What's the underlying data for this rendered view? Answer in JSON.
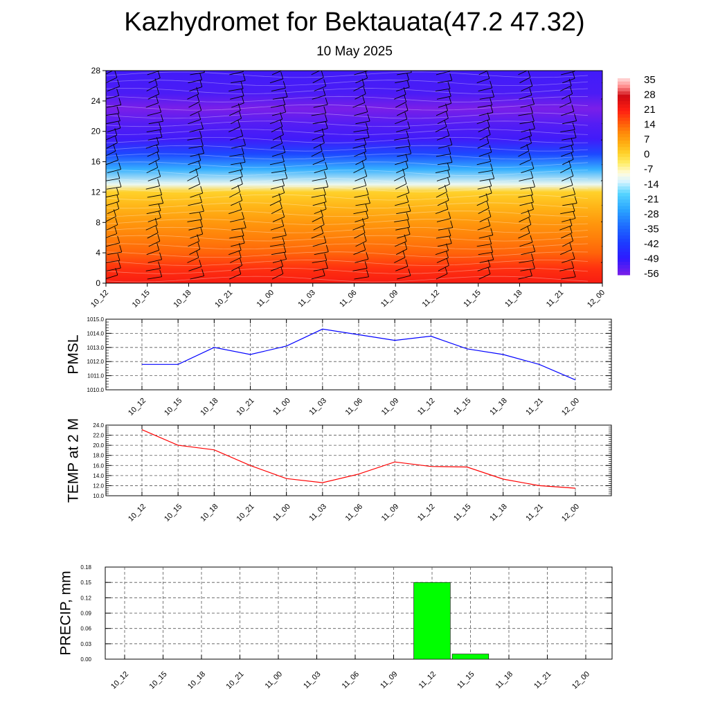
{
  "title": "Kazhydromet for Bektauata(47.2 47.32)",
  "subtitle": "10 May 2025",
  "time_labels": [
    "10_12",
    "10_15",
    "10_18",
    "10_21",
    "11_00",
    "11_03",
    "11_06",
    "11_09",
    "11_12",
    "11_15",
    "11_18",
    "11_21",
    "12_00"
  ],
  "chart_data": [
    {
      "type": "heatmap",
      "id": "cross-section",
      "x": [
        "10_12",
        "10_15",
        "10_18",
        "10_21",
        "11_00",
        "11_03",
        "11_06",
        "11_09",
        "11_12",
        "11_15",
        "11_18",
        "11_21",
        "12_00"
      ],
      "y_ticks": [
        "0",
        "4",
        "8",
        "12",
        "16",
        "20",
        "24",
        "28"
      ],
      "ylim": [
        0,
        28
      ],
      "colorbar_labels": [
        "35",
        "28",
        "21",
        "14",
        "7",
        "0",
        "-7",
        "-14",
        "-21",
        "-28",
        "-35",
        "-42",
        "-49",
        "-56"
      ],
      "zlim": [
        -60,
        37
      ],
      "level_profile": [
        {
          "level": 0,
          "value": 22
        },
        {
          "level": 2,
          "value": 19
        },
        {
          "level": 4,
          "value": 14
        },
        {
          "level": 6,
          "value": 11
        },
        {
          "level": 8,
          "value": 8
        },
        {
          "level": 10,
          "value": 4
        },
        {
          "level": 12,
          "value": 0
        },
        {
          "level": 13,
          "value": -12
        },
        {
          "level": 15,
          "value": -26
        },
        {
          "level": 17,
          "value": -42
        },
        {
          "level": 19,
          "value": -54
        },
        {
          "level": 21,
          "value": -56
        },
        {
          "level": 23,
          "value": -60
        },
        {
          "level": 25,
          "value": -55
        },
        {
          "level": 28,
          "value": -54
        }
      ],
      "wind_barbs": true
    },
    {
      "type": "line",
      "id": "pmsl",
      "ylabel": "PMSL",
      "x": [
        "10_12",
        "10_15",
        "10_18",
        "10_21",
        "11_00",
        "11_03",
        "11_06",
        "11_09",
        "11_12",
        "11_15",
        "11_18",
        "11_21",
        "12_00"
      ],
      "series": [
        {
          "color": "#0000ff",
          "values": [
            1011.8,
            1011.8,
            1013.0,
            1012.5,
            1013.1,
            1014.3,
            1013.9,
            1013.5,
            1013.8,
            1012.9,
            1012.5,
            1011.8,
            1010.7
          ]
        }
      ],
      "ylim": [
        1010.0,
        1015.0
      ],
      "y_ticks": [
        "1010.0",
        "1011.0",
        "1012.0",
        "1013.0",
        "1014.0",
        "1015.0"
      ],
      "grid": true
    },
    {
      "type": "line",
      "id": "temp",
      "ylabel": "TEMP at 2 M",
      "x": [
        "10_12",
        "10_15",
        "10_18",
        "10_21",
        "11_00",
        "11_03",
        "11_06",
        "11_09",
        "11_12",
        "11_15",
        "11_18",
        "11_21",
        "12_00"
      ],
      "series": [
        {
          "color": "#ff0000",
          "values": [
            23.1,
            20.0,
            19.1,
            16.0,
            13.4,
            12.6,
            14.3,
            16.7,
            15.8,
            15.7,
            13.3,
            12.0,
            11.5
          ]
        }
      ],
      "ylim": [
        10.0,
        24.0
      ],
      "y_ticks": [
        "10.0",
        "12.0",
        "14.0",
        "16.0",
        "18.0",
        "20.0",
        "22.0",
        "24.0"
      ],
      "grid": true
    },
    {
      "type": "bar",
      "id": "precip",
      "ylabel": "PRECIP, mm",
      "categories": [
        "10_12",
        "10_15",
        "10_18",
        "10_21",
        "11_00",
        "11_03",
        "11_06",
        "11_09",
        "11_12",
        "11_15",
        "11_18",
        "11_21",
        "12_00"
      ],
      "values": [
        0,
        0,
        0,
        0,
        0,
        0,
        0,
        0,
        0.15,
        0.01,
        0,
        0,
        0
      ],
      "color": "#00ff00",
      "ylim": [
        0,
        0.18
      ],
      "y_ticks": [
        "0.00",
        "0.03",
        "0.06",
        "0.09",
        "0.12",
        "0.15",
        "0.18"
      ],
      "grid": true
    }
  ]
}
